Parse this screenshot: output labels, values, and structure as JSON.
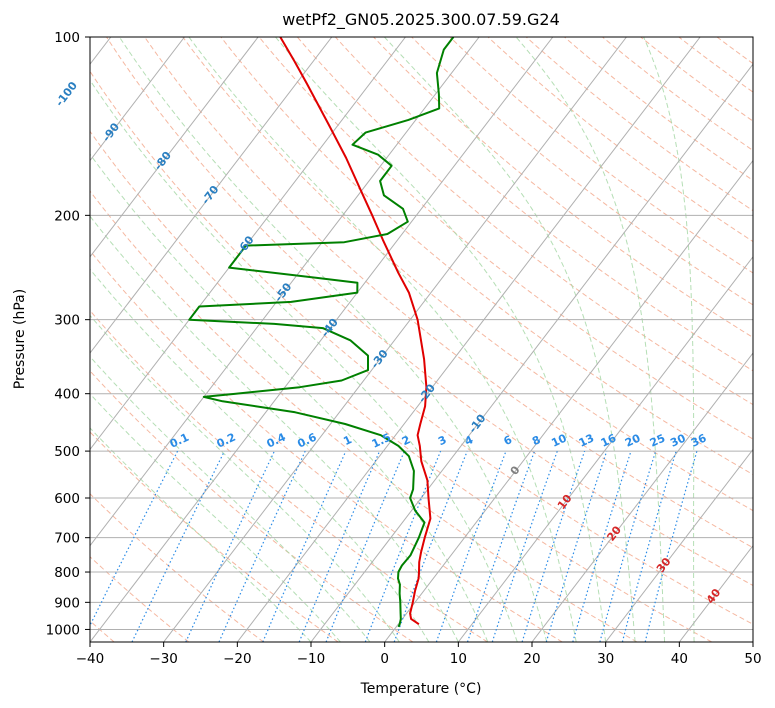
{
  "chart_data": {
    "type": "line",
    "chart_style": "skew-T log-p thermodynamic diagram",
    "title": "wetPf2_GN05.2025.300.07.59.G24",
    "xlabel": "Temperature (°C)",
    "ylabel": "Pressure (hPa)",
    "xlim": [
      -40,
      50
    ],
    "ylim": [
      1050,
      100
    ],
    "y_scale": "log",
    "grid": true,
    "x_ticks": [
      "−40",
      "−30",
      "−20",
      "−10",
      "0",
      "10",
      "20",
      "30",
      "40",
      "50"
    ],
    "y_ticks": [
      "100",
      "200",
      "300",
      "400",
      "500",
      "600",
      "700",
      "800",
      "900",
      "1000"
    ],
    "colors": {
      "temperature": "#e00000",
      "dewpoint": "#008000",
      "dry_adiabat": "#f3a68a",
      "moist_adiabat": "#a8d8a8",
      "mixing_ratio": "#2a8be6",
      "isotherm": "#b0b0b0",
      "low_isotherm_label": "#2a7fc1",
      "warm_isotherm_label": "#d62728",
      "zero_label": "#808080"
    },
    "series": [
      {
        "name": "",
        "role": "temperature",
        "points": [
          {
            "p": 980,
            "t": 2.8
          },
          {
            "p": 960,
            "t": 1.2
          },
          {
            "p": 940,
            "t": 0.5
          },
          {
            "p": 900,
            "t": -0.3
          },
          {
            "p": 860,
            "t": -1.2
          },
          {
            "p": 820,
            "t": -2.0
          },
          {
            "p": 800,
            "t": -2.6
          },
          {
            "p": 770,
            "t": -3.6
          },
          {
            "p": 740,
            "t": -4.4
          },
          {
            "p": 700,
            "t": -5.4
          },
          {
            "p": 650,
            "t": -6.6
          },
          {
            "p": 600,
            "t": -9.0
          },
          {
            "p": 560,
            "t": -11.0
          },
          {
            "p": 520,
            "t": -13.8
          },
          {
            "p": 490,
            "t": -15.6
          },
          {
            "p": 470,
            "t": -17.0
          },
          {
            "p": 450,
            "t": -17.8
          },
          {
            "p": 420,
            "t": -19.0
          },
          {
            "p": 390,
            "t": -20.8
          },
          {
            "p": 350,
            "t": -24.0
          },
          {
            "p": 300,
            "t": -29.0
          },
          {
            "p": 270,
            "t": -33.0
          },
          {
            "p": 250,
            "t": -36.5
          },
          {
            "p": 220,
            "t": -42.0
          },
          {
            "p": 200,
            "t": -46.0
          },
          {
            "p": 180,
            "t": -50.5
          },
          {
            "p": 160,
            "t": -55.5
          },
          {
            "p": 140,
            "t": -61.5
          },
          {
            "p": 120,
            "t": -68.5
          },
          {
            "p": 110,
            "t": -72.5
          },
          {
            "p": 100,
            "t": -77.0
          }
        ]
      },
      {
        "name": "",
        "role": "dewpoint",
        "points": [
          {
            "p": 990,
            "t": 0.3
          },
          {
            "p": 980,
            "t": 0.2
          },
          {
            "p": 960,
            "t": -0.2
          },
          {
            "p": 940,
            "t": -0.8
          },
          {
            "p": 900,
            "t": -2.0
          },
          {
            "p": 870,
            "t": -3.0
          },
          {
            "p": 840,
            "t": -3.9
          },
          {
            "p": 820,
            "t": -4.8
          },
          {
            "p": 800,
            "t": -5.4
          },
          {
            "p": 780,
            "t": -5.6
          },
          {
            "p": 750,
            "t": -5.5
          },
          {
            "p": 700,
            "t": -6.2
          },
          {
            "p": 660,
            "t": -7.0
          },
          {
            "p": 630,
            "t": -9.5
          },
          {
            "p": 600,
            "t": -11.5
          },
          {
            "p": 580,
            "t": -12.0
          },
          {
            "p": 540,
            "t": -13.8
          },
          {
            "p": 510,
            "t": -16.0
          },
          {
            "p": 490,
            "t": -18.5
          },
          {
            "p": 470,
            "t": -22.0
          },
          {
            "p": 450,
            "t": -28.0
          },
          {
            "p": 430,
            "t": -36.0
          },
          {
            "p": 420,
            "t": -42.0
          },
          {
            "p": 412,
            "t": -47.0
          },
          {
            "p": 405,
            "t": -50.0
          },
          {
            "p": 400,
            "t": -46.0
          },
          {
            "p": 390,
            "t": -38.0
          },
          {
            "p": 380,
            "t": -33.0
          },
          {
            "p": 365,
            "t": -30.5
          },
          {
            "p": 345,
            "t": -32.0
          },
          {
            "p": 325,
            "t": -36.0
          },
          {
            "p": 310,
            "t": -41.0
          },
          {
            "p": 305,
            "t": -48.0
          },
          {
            "p": 300,
            "t": -60.0
          },
          {
            "p": 285,
            "t": -60.0
          },
          {
            "p": 280,
            "t": -48.0
          },
          {
            "p": 270,
            "t": -40.0
          },
          {
            "p": 260,
            "t": -41.0
          },
          {
            "p": 255,
            "t": -47.0
          },
          {
            "p": 245,
            "t": -60.0
          },
          {
            "p": 225,
            "t": -60.0
          },
          {
            "p": 222,
            "t": -47.0
          },
          {
            "p": 215,
            "t": -42.0
          },
          {
            "p": 205,
            "t": -40.5
          },
          {
            "p": 195,
            "t": -42.5
          },
          {
            "p": 185,
            "t": -46.5
          },
          {
            "p": 175,
            "t": -48.5
          },
          {
            "p": 165,
            "t": -48.5
          },
          {
            "p": 158,
            "t": -51.5
          },
          {
            "p": 152,
            "t": -56.0
          },
          {
            "p": 145,
            "t": -55.5
          },
          {
            "p": 138,
            "t": -51.0
          },
          {
            "p": 132,
            "t": -48.0
          },
          {
            "p": 125,
            "t": -49.5
          },
          {
            "p": 115,
            "t": -52.0
          },
          {
            "p": 105,
            "t": -53.5
          },
          {
            "p": 100,
            "t": -53.5
          }
        ]
      }
    ],
    "low_isotherm_labels": [
      "-100",
      "-90",
      "-80",
      "-70",
      "-60",
      "-50",
      "-40",
      "-30",
      "-20",
      "-10"
    ],
    "warm_isotherm_labels": [
      "0",
      "10",
      "20",
      "30",
      "40"
    ],
    "mixing_ratio_labels": [
      "0.1",
      "0.2",
      "0.4",
      "0.6",
      "1",
      "1.5",
      "2",
      "3",
      "4",
      "6",
      "8",
      "10",
      "13",
      "16",
      "20",
      "25",
      "30",
      "36"
    ]
  }
}
